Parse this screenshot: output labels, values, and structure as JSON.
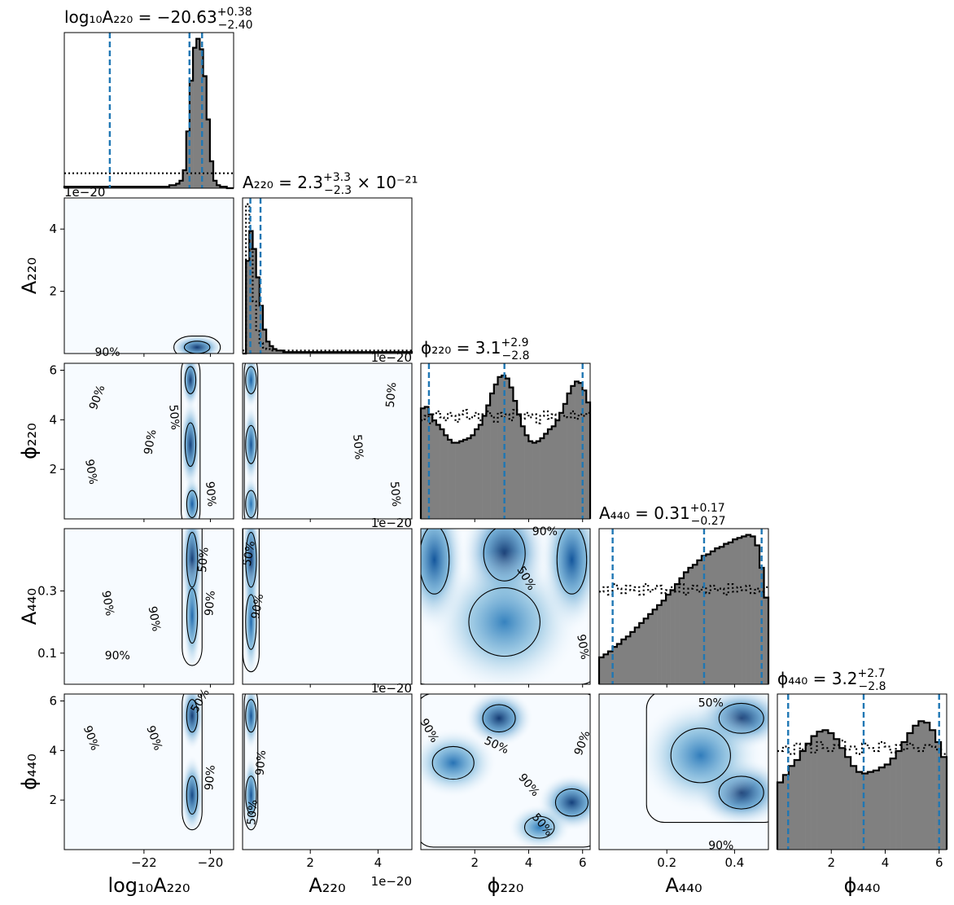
{
  "chart_data": {
    "type": "corner",
    "params": [
      {
        "key": "logA220",
        "label": "log₁₀A₂₂₀",
        "range": [
          -24.4,
          -19.3
        ],
        "ticks": [
          -22,
          -20
        ],
        "tick_labels": [
          "−22",
          "−20"
        ],
        "title": {
          "lhs": "log₁₀A₂₂₀ = ",
          "value": "−20.63",
          "plus": "+0.38",
          "minus": "−2.40",
          "suffix": ""
        },
        "quantiles": [
          -23.03,
          -20.63,
          -20.25
        ],
        "offset_text": ""
      },
      {
        "key": "A220",
        "label": "A₂₂₀",
        "range": [
          0.0,
          5.0
        ],
        "ticks": [
          2,
          4
        ],
        "tick_labels": [
          "2",
          "4"
        ],
        "title": {
          "lhs": "A₂₂₀ = ",
          "value": "2.3",
          "plus": "+3.3",
          "minus": "−2.3",
          "suffix": " × 10⁻²¹"
        },
        "quantiles": [
          0.23,
          0.53
        ],
        "offset_text": "1e−20"
      },
      {
        "key": "phi220",
        "label": "ϕ₂₂₀",
        "range": [
          0.0,
          6.28
        ],
        "ticks": [
          2,
          4,
          6
        ],
        "tick_labels": [
          "2",
          "4",
          "6"
        ],
        "title": {
          "lhs": "ϕ₂₂₀ = ",
          "value": "3.1",
          "plus": "+2.9",
          "minus": "−2.8",
          "suffix": ""
        },
        "quantiles": [
          0.3,
          3.1,
          6.0
        ],
        "offset_text": ""
      },
      {
        "key": "A440",
        "label": "A₄₄₀",
        "range": [
          0.0,
          0.5
        ],
        "ticks": [
          0.1,
          0.3
        ],
        "tick_labels": [
          "0.1",
          "0.3"
        ],
        "xticks": [
          0.2,
          0.4
        ],
        "xtick_labels": [
          "0.2",
          "0.4"
        ],
        "title": {
          "lhs": "A₄₄₀ = ",
          "value": "0.31",
          "plus": "+0.17",
          "minus": "−0.27",
          "suffix": ""
        },
        "quantiles": [
          0.04,
          0.31,
          0.48
        ],
        "offset_text": ""
      },
      {
        "key": "phi440",
        "label": "ϕ₄₄₀",
        "range": [
          0.0,
          6.28
        ],
        "ticks": [
          2,
          4,
          6
        ],
        "tick_labels": [
          "2",
          "4",
          "6"
        ],
        "title": {
          "lhs": "ϕ₄₄₀ = ",
          "value": "3.2",
          "plus": "+2.7",
          "minus": "−2.8",
          "suffix": ""
        },
        "quantiles": [
          0.4,
          3.2,
          6.0
        ],
        "offset_text": ""
      }
    ],
    "hist_posterior": [
      [
        0.01,
        0.01,
        0.01,
        0.01,
        0.01,
        0.01,
        0.01,
        0.01,
        0.01,
        0.01,
        0.01,
        0.01,
        0.01,
        0.01,
        0.01,
        0.01,
        0.01,
        0.01,
        0.01,
        0.01,
        0.01,
        0.01,
        0.01,
        0.01,
        0.01,
        0.01,
        0.01,
        0.01,
        0.01,
        0.01,
        0.01,
        0.02,
        0.02,
        0.03,
        0.05,
        0.12,
        0.38,
        0.72,
        0.94,
        1.0,
        0.93,
        0.75,
        0.46,
        0.18,
        0.05,
        0.02,
        0.01,
        0.01,
        0.0,
        0.0
      ],
      [
        0.0,
        0.62,
        0.82,
        0.7,
        0.51,
        0.32,
        0.16,
        0.08,
        0.05,
        0.03,
        0.02,
        0.02,
        0.01,
        0.01,
        0.01,
        0.01,
        0.01,
        0.01,
        0.01,
        0.01,
        0.01,
        0.01,
        0.01,
        0.01,
        0.01,
        0.01,
        0.01,
        0.01,
        0.01,
        0.01,
        0.01,
        0.01,
        0.01,
        0.01,
        0.01,
        0.01,
        0.01,
        0.01,
        0.01,
        0.01,
        0.01,
        0.01,
        0.01,
        0.01,
        0.01,
        0.01,
        0.01,
        0.01,
        0.01,
        0.01
      ],
      [
        0.74,
        0.75,
        0.7,
        0.66,
        0.63,
        0.6,
        0.56,
        0.53,
        0.51,
        0.51,
        0.52,
        0.53,
        0.54,
        0.56,
        0.6,
        0.63,
        0.69,
        0.76,
        0.84,
        0.9,
        0.95,
        0.96,
        0.94,
        0.88,
        0.79,
        0.7,
        0.62,
        0.56,
        0.52,
        0.51,
        0.52,
        0.54,
        0.57,
        0.6,
        0.62,
        0.66,
        0.71,
        0.77,
        0.84,
        0.89,
        0.92,
        0.91,
        0.86,
        0.78
      ],
      [
        0.18,
        0.2,
        0.22,
        0.25,
        0.27,
        0.3,
        0.32,
        0.35,
        0.38,
        0.41,
        0.44,
        0.47,
        0.5,
        0.53,
        0.56,
        0.6,
        0.63,
        0.67,
        0.71,
        0.75,
        0.78,
        0.8,
        0.83,
        0.86,
        0.87,
        0.89,
        0.91,
        0.92,
        0.94,
        0.95,
        0.97,
        0.98,
        0.99,
        1.0,
        0.99,
        0.93,
        0.78,
        0.58
      ],
      [
        0.45,
        0.5,
        0.56,
        0.6,
        0.66,
        0.71,
        0.76,
        0.79,
        0.8,
        0.78,
        0.74,
        0.68,
        0.62,
        0.56,
        0.52,
        0.51,
        0.52,
        0.53,
        0.55,
        0.57,
        0.61,
        0.66,
        0.72,
        0.78,
        0.83,
        0.86,
        0.85,
        0.8,
        0.72,
        0.62
      ]
    ],
    "hist_prior": [
      [
        0.1,
        0.1,
        0.1,
        0.1,
        0.1,
        0.1,
        0.1,
        0.1,
        0.1,
        0.1,
        0.1,
        0.1,
        0.1,
        0.1,
        0.1,
        0.1,
        0.1,
        0.1,
        0.1,
        0.1,
        0.1,
        0.1,
        0.1,
        0.1,
        0.1,
        0.1,
        0.1,
        0.1,
        0.1,
        0.1,
        0.1,
        0.1,
        0.1,
        0.1,
        0.1,
        0.1,
        0.1,
        0.1,
        0.1,
        0.1,
        0.1,
        0.1,
        0.1,
        0.1,
        0.1,
        0.1,
        0.1,
        0.1,
        0.1,
        0.1
      ],
      [
        0.02,
        1.0,
        0.7,
        0.35,
        0.15,
        0.07,
        0.04,
        0.03,
        0.02,
        0.02,
        0.02,
        0.02,
        0.02,
        0.02,
        0.02,
        0.02,
        0.02,
        0.02,
        0.02,
        0.02,
        0.02,
        0.02,
        0.02,
        0.02,
        0.02,
        0.02,
        0.02,
        0.02,
        0.02,
        0.02,
        0.02,
        0.02,
        0.02,
        0.02,
        0.02,
        0.02,
        0.02,
        0.02,
        0.02,
        0.02,
        0.02,
        0.02,
        0.02,
        0.02,
        0.02,
        0.02,
        0.02,
        0.02,
        0.02,
        0.02
      ],
      [
        0.66,
        0.69,
        0.64,
        0.7,
        0.72,
        0.68,
        0.66,
        0.71,
        0.69,
        0.65,
        0.7,
        0.73,
        0.67,
        0.68,
        0.71,
        0.66,
        0.7,
        0.72,
        0.69,
        0.65,
        0.71,
        0.68,
        0.7,
        0.66,
        0.73,
        0.69,
        0.67,
        0.71,
        0.68,
        0.7,
        0.64,
        0.69,
        0.72,
        0.67,
        0.7,
        0.66,
        0.71,
        0.69,
        0.68,
        0.72,
        0.67,
        0.7,
        0.69,
        0.71
      ],
      [
        0.62,
        0.65,
        0.6,
        0.67,
        0.64,
        0.61,
        0.66,
        0.63,
        0.65,
        0.6,
        0.67,
        0.62,
        0.64,
        0.66,
        0.61,
        0.63,
        0.65,
        0.62,
        0.67,
        0.6,
        0.64,
        0.66,
        0.62,
        0.65,
        0.61,
        0.66,
        0.63,
        0.64,
        0.6,
        0.67,
        0.62,
        0.65,
        0.63,
        0.66,
        0.61,
        0.64,
        0.62,
        0.65
      ],
      [
        0.66,
        0.69,
        0.64,
        0.71,
        0.67,
        0.7,
        0.65,
        0.72,
        0.68,
        0.66,
        0.7,
        0.73,
        0.67,
        0.69,
        0.64,
        0.71,
        0.68,
        0.66,
        0.72,
        0.69,
        0.65,
        0.7,
        0.67,
        0.71,
        0.68,
        0.66,
        0.7,
        0.69,
        0.67,
        0.64
      ]
    ],
    "contours_2d": [
      {
        "row": 1,
        "col": 0,
        "blobs": [
          {
            "x": -20.4,
            "y": 0.2,
            "sx": 0.35,
            "sy": 0.18,
            "w": 1.0
          }
        ]
      },
      {
        "row": 2,
        "col": 0,
        "blobs": [
          {
            "x": -20.6,
            "y": 5.6,
            "sx": 0.12,
            "sy": 0.5,
            "w": 1.0
          },
          {
            "x": -20.6,
            "y": 3.0,
            "sx": 0.14,
            "sy": 0.8,
            "w": 0.95
          },
          {
            "x": -20.55,
            "y": 0.6,
            "sx": 0.12,
            "sy": 0.5,
            "w": 0.7
          }
        ]
      },
      {
        "row": 2,
        "col": 1,
        "blobs": [
          {
            "x": 0.25,
            "y": 5.6,
            "sx": 0.1,
            "sy": 0.5,
            "w": 0.7
          },
          {
            "x": 0.25,
            "y": 3.0,
            "sx": 0.1,
            "sy": 0.7,
            "w": 0.8
          },
          {
            "x": 0.25,
            "y": 0.6,
            "sx": 0.1,
            "sy": 0.5,
            "w": 0.5
          }
        ]
      },
      {
        "row": 3,
        "col": 0,
        "blobs": [
          {
            "x": -20.55,
            "y": 0.4,
            "sx": 0.15,
            "sy": 0.08,
            "w": 1.0
          },
          {
            "x": -20.55,
            "y": 0.22,
            "sx": 0.12,
            "sy": 0.08,
            "w": 0.6
          }
        ]
      },
      {
        "row": 3,
        "col": 1,
        "blobs": [
          {
            "x": 0.25,
            "y": 0.4,
            "sx": 0.12,
            "sy": 0.08,
            "w": 1.0
          },
          {
            "x": 0.25,
            "y": 0.2,
            "sx": 0.1,
            "sy": 0.08,
            "w": 0.6
          }
        ]
      },
      {
        "row": 3,
        "col": 2,
        "blobs": [
          {
            "x": 3.1,
            "y": 0.42,
            "sx": 0.7,
            "sy": 0.08,
            "w": 1.0
          },
          {
            "x": 0.5,
            "y": 0.4,
            "sx": 0.5,
            "sy": 0.1,
            "w": 0.75
          },
          {
            "x": 5.6,
            "y": 0.4,
            "sx": 0.5,
            "sy": 0.1,
            "w": 0.75
          },
          {
            "x": 3.1,
            "y": 0.2,
            "sx": 1.2,
            "sy": 0.1,
            "w": 0.35
          }
        ]
      },
      {
        "row": 4,
        "col": 0,
        "blobs": [
          {
            "x": -20.55,
            "y": 5.4,
            "sx": 0.15,
            "sy": 0.6,
            "w": 1.0
          },
          {
            "x": -20.55,
            "y": 2.2,
            "sx": 0.15,
            "sy": 0.7,
            "w": 0.9
          }
        ]
      },
      {
        "row": 4,
        "col": 1,
        "blobs": [
          {
            "x": 0.25,
            "y": 5.4,
            "sx": 0.1,
            "sy": 0.6,
            "w": 0.8
          },
          {
            "x": 0.25,
            "y": 2.2,
            "sx": 0.1,
            "sy": 0.7,
            "w": 0.8
          }
        ]
      },
      {
        "row": 4,
        "col": 2,
        "blobs": [
          {
            "x": 2.9,
            "y": 5.3,
            "sx": 0.55,
            "sy": 0.5,
            "w": 1.0
          },
          {
            "x": 1.2,
            "y": 3.5,
            "sx": 0.7,
            "sy": 0.6,
            "w": 0.5
          },
          {
            "x": 5.6,
            "y": 1.9,
            "sx": 0.55,
            "sy": 0.5,
            "w": 0.95
          },
          {
            "x": 4.4,
            "y": 0.9,
            "sx": 0.5,
            "sy": 0.4,
            "w": 0.4
          }
        ]
      },
      {
        "row": 4,
        "col": 3,
        "blobs": [
          {
            "x": 0.42,
            "y": 5.3,
            "sx": 0.06,
            "sy": 0.55,
            "w": 1.0
          },
          {
            "x": 0.42,
            "y": 2.3,
            "sx": 0.06,
            "sy": 0.6,
            "w": 1.0
          },
          {
            "x": 0.3,
            "y": 3.8,
            "sx": 0.08,
            "sy": 1.0,
            "w": 0.4
          }
        ]
      }
    ],
    "contour_labels": [
      {
        "row": 1,
        "col": 0,
        "text": "90%",
        "x": -23.1,
        "y": 0.02,
        "rot": 0
      },
      {
        "row": 2,
        "col": 0,
        "text": "90%",
        "x": -23.4,
        "y": 4.9,
        "rot": 70
      },
      {
        "row": 2,
        "col": 0,
        "text": "90%",
        "x": -23.6,
        "y": 1.9,
        "rot": -80
      },
      {
        "row": 2,
        "col": 0,
        "text": "90%",
        "x": -21.8,
        "y": 3.1,
        "rot": 80
      },
      {
        "row": 2,
        "col": 0,
        "text": "50%",
        "x": -21.1,
        "y": 4.1,
        "rot": -85
      },
      {
        "row": 2,
        "col": 0,
        "text": "90%",
        "x": -20.0,
        "y": 1.0,
        "rot": -85
      },
      {
        "row": 2,
        "col": 1,
        "text": "50%",
        "x": 4.4,
        "y": 5.0,
        "rot": 85
      },
      {
        "row": 2,
        "col": 1,
        "text": "50%",
        "x": 3.4,
        "y": 2.9,
        "rot": -85
      },
      {
        "row": 2,
        "col": 1,
        "text": "50%",
        "x": 4.5,
        "y": 1.0,
        "rot": -85
      },
      {
        "row": 3,
        "col": 0,
        "text": "50%",
        "x": -20.2,
        "y": 0.4,
        "rot": 85
      },
      {
        "row": 3,
        "col": 0,
        "text": "90%",
        "x": -20.0,
        "y": 0.26,
        "rot": 85
      },
      {
        "row": 3,
        "col": 0,
        "text": "90%",
        "x": -23.1,
        "y": 0.26,
        "rot": -80
      },
      {
        "row": 3,
        "col": 0,
        "text": "90%",
        "x": -21.7,
        "y": 0.21,
        "rot": -80
      },
      {
        "row": 3,
        "col": 0,
        "text": "90%",
        "x": -22.8,
        "y": 0.09,
        "rot": 0
      },
      {
        "row": 3,
        "col": 1,
        "text": "50%",
        "x": 0.2,
        "y": 0.42,
        "rot": 80
      },
      {
        "row": 3,
        "col": 1,
        "text": "90%",
        "x": 0.45,
        "y": 0.25,
        "rot": 80
      },
      {
        "row": 3,
        "col": 2,
        "text": "90%",
        "x": 4.6,
        "y": 0.49,
        "rot": 0
      },
      {
        "row": 3,
        "col": 2,
        "text": "50%",
        "x": 3.9,
        "y": 0.34,
        "rot": -60
      },
      {
        "row": 3,
        "col": 2,
        "text": "90%",
        "x": 6.0,
        "y": 0.12,
        "rot": -80
      },
      {
        "row": 4,
        "col": 0,
        "text": "90%",
        "x": -23.6,
        "y": 4.5,
        "rot": -70
      },
      {
        "row": 4,
        "col": 0,
        "text": "90%",
        "x": -21.7,
        "y": 4.5,
        "rot": -70
      },
      {
        "row": 4,
        "col": 0,
        "text": "50%",
        "x": -20.3,
        "y": 6.0,
        "rot": 60
      },
      {
        "row": 4,
        "col": 0,
        "text": "90%",
        "x": -20.0,
        "y": 2.9,
        "rot": 85
      },
      {
        "row": 4,
        "col": 1,
        "text": "90%",
        "x": 0.55,
        "y": 3.5,
        "rot": 85
      },
      {
        "row": 4,
        "col": 1,
        "text": "50%",
        "x": 0.3,
        "y": 1.5,
        "rot": 85
      },
      {
        "row": 4,
        "col": 2,
        "text": "90%",
        "x": 0.3,
        "y": 4.8,
        "rot": -60
      },
      {
        "row": 4,
        "col": 2,
        "text": "50%",
        "x": 2.8,
        "y": 4.2,
        "rot": -25
      },
      {
        "row": 4,
        "col": 2,
        "text": "90%",
        "x": 6.0,
        "y": 4.3,
        "rot": 70
      },
      {
        "row": 4,
        "col": 2,
        "text": "90%",
        "x": 4.0,
        "y": 2.6,
        "rot": -50
      },
      {
        "row": 4,
        "col": 2,
        "text": "50%",
        "x": 4.5,
        "y": 1.0,
        "rot": -50
      },
      {
        "row": 4,
        "col": 3,
        "text": "50%",
        "x": 0.33,
        "y": 5.9,
        "rot": 0
      },
      {
        "row": 4,
        "col": 3,
        "text": "90%",
        "x": 0.36,
        "y": 0.15,
        "rot": 0
      }
    ],
    "offset_labels": [
      {
        "row": 1,
        "text": "1e−20",
        "side": "xaxis",
        "panel_col": 0
      },
      {
        "row": 2,
        "text": "1e−20",
        "side": "xaxis",
        "panel_col": 1
      },
      {
        "row": 3,
        "text": "1e−20",
        "side": "xaxis",
        "panel_col": 1
      },
      {
        "row": 4,
        "text": "1e−20",
        "side": "xaxis",
        "panel_col": 1
      }
    ],
    "colors": {
      "hist_fill": "#808080",
      "hist_edge": "#000000",
      "quantile_line": "#1f77b4",
      "density_low": "#f7fbff",
      "density_high": "#08306b",
      "contour": "#000000"
    }
  }
}
